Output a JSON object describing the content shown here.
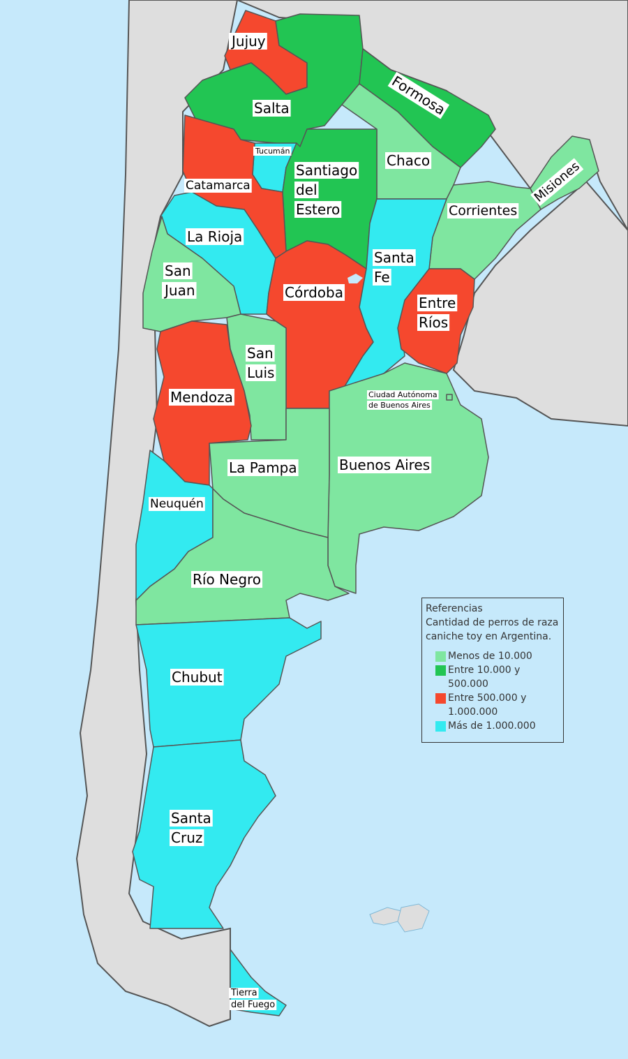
{
  "map": {
    "colors": {
      "sea": "#c6e9fb",
      "neighbor": "#dedede",
      "border": "#555555",
      "low": "#7fe6a0",
      "mid": "#22c553",
      "high": "#f5482e",
      "top": "#33eaf0"
    },
    "provinces": [
      {
        "id": "jujuy",
        "name": "Jujuy",
        "category": "high"
      },
      {
        "id": "salta",
        "name": "Salta",
        "category": "mid"
      },
      {
        "id": "formosa",
        "name": "Formosa",
        "category": "mid"
      },
      {
        "id": "tucuman",
        "name": "Tucumán",
        "category": "top"
      },
      {
        "id": "santiago-del-estero",
        "name": "Santiago del Estero",
        "category": "mid"
      },
      {
        "id": "chaco",
        "name": "Chaco",
        "category": "low"
      },
      {
        "id": "misiones",
        "name": "Misiones",
        "category": "low"
      },
      {
        "id": "catamarca",
        "name": "Catamarca",
        "category": "high"
      },
      {
        "id": "corrientes",
        "name": "Corrientes",
        "category": "low"
      },
      {
        "id": "la-rioja",
        "name": "La Rioja",
        "category": "top"
      },
      {
        "id": "san-juan",
        "name": "San Juan",
        "category": "low"
      },
      {
        "id": "santa-fe",
        "name": "Santa Fe",
        "category": "top"
      },
      {
        "id": "cordoba",
        "name": "Córdoba",
        "category": "high"
      },
      {
        "id": "entre-rios",
        "name": "Entre Ríos",
        "category": "high"
      },
      {
        "id": "san-luis",
        "name": "San Luis",
        "category": "low"
      },
      {
        "id": "mendoza",
        "name": "Mendoza",
        "category": "high"
      },
      {
        "id": "caba",
        "name": "Ciudad Autónoma de Buenos Aires",
        "category": "low"
      },
      {
        "id": "la-pampa",
        "name": "La Pampa",
        "category": "low"
      },
      {
        "id": "buenos-aires",
        "name": "Buenos Aires",
        "category": "low"
      },
      {
        "id": "neuquen",
        "name": "Neuquén",
        "category": "top"
      },
      {
        "id": "rio-negro",
        "name": "Río Negro",
        "category": "low"
      },
      {
        "id": "chubut",
        "name": "Chubut",
        "category": "top"
      },
      {
        "id": "santa-cruz",
        "name": "Santa Cruz",
        "category": "top"
      },
      {
        "id": "tierra-del-fuego",
        "name": "Tierra del Fuego",
        "category": "top"
      }
    ],
    "labels": {
      "jujuy": "Jujuy",
      "salta": "Salta",
      "formosa": "Formosa",
      "tucuman": "Tucumán",
      "santiago": [
        "Santiago",
        "del",
        "Estero"
      ],
      "chaco": "Chaco",
      "misiones": "Misiones",
      "catamarca": "Catamarca",
      "corrientes": "Corrientes",
      "la_rioja": "La Rioja",
      "san_juan": [
        "San",
        "Juan"
      ],
      "santa_fe": [
        "Santa",
        "Fe"
      ],
      "cordoba": "Córdoba",
      "entre_rios": [
        "Entre",
        "Ríos"
      ],
      "san_luis": [
        "San",
        "Luis"
      ],
      "mendoza": "Mendoza",
      "caba": [
        "Ciudad Autónoma",
        "de Buenos Aires"
      ],
      "la_pampa": "La Pampa",
      "buenos_aires": "Buenos Aires",
      "neuquen": "Neuquén",
      "rio_negro": "Río Negro",
      "chubut": "Chubut",
      "santa_cruz": [
        "Santa",
        "Cruz"
      ],
      "tierra_del_fuego": [
        "Tierra",
        "del Fuego"
      ]
    }
  },
  "legend": {
    "title": "Referencias",
    "description": "Cantidad de perros de raza caniche toy en Argentina.",
    "items": [
      {
        "label": "Menos de 10.000",
        "color": "#7fe6a0"
      },
      {
        "label": "Entre 10.000 y 500.000",
        "color": "#22c553"
      },
      {
        "label": "Entre 500.000 y 1.000.000",
        "color": "#f5482e"
      },
      {
        "label": "Más de 1.000.000",
        "color": "#33eaf0"
      }
    ]
  }
}
